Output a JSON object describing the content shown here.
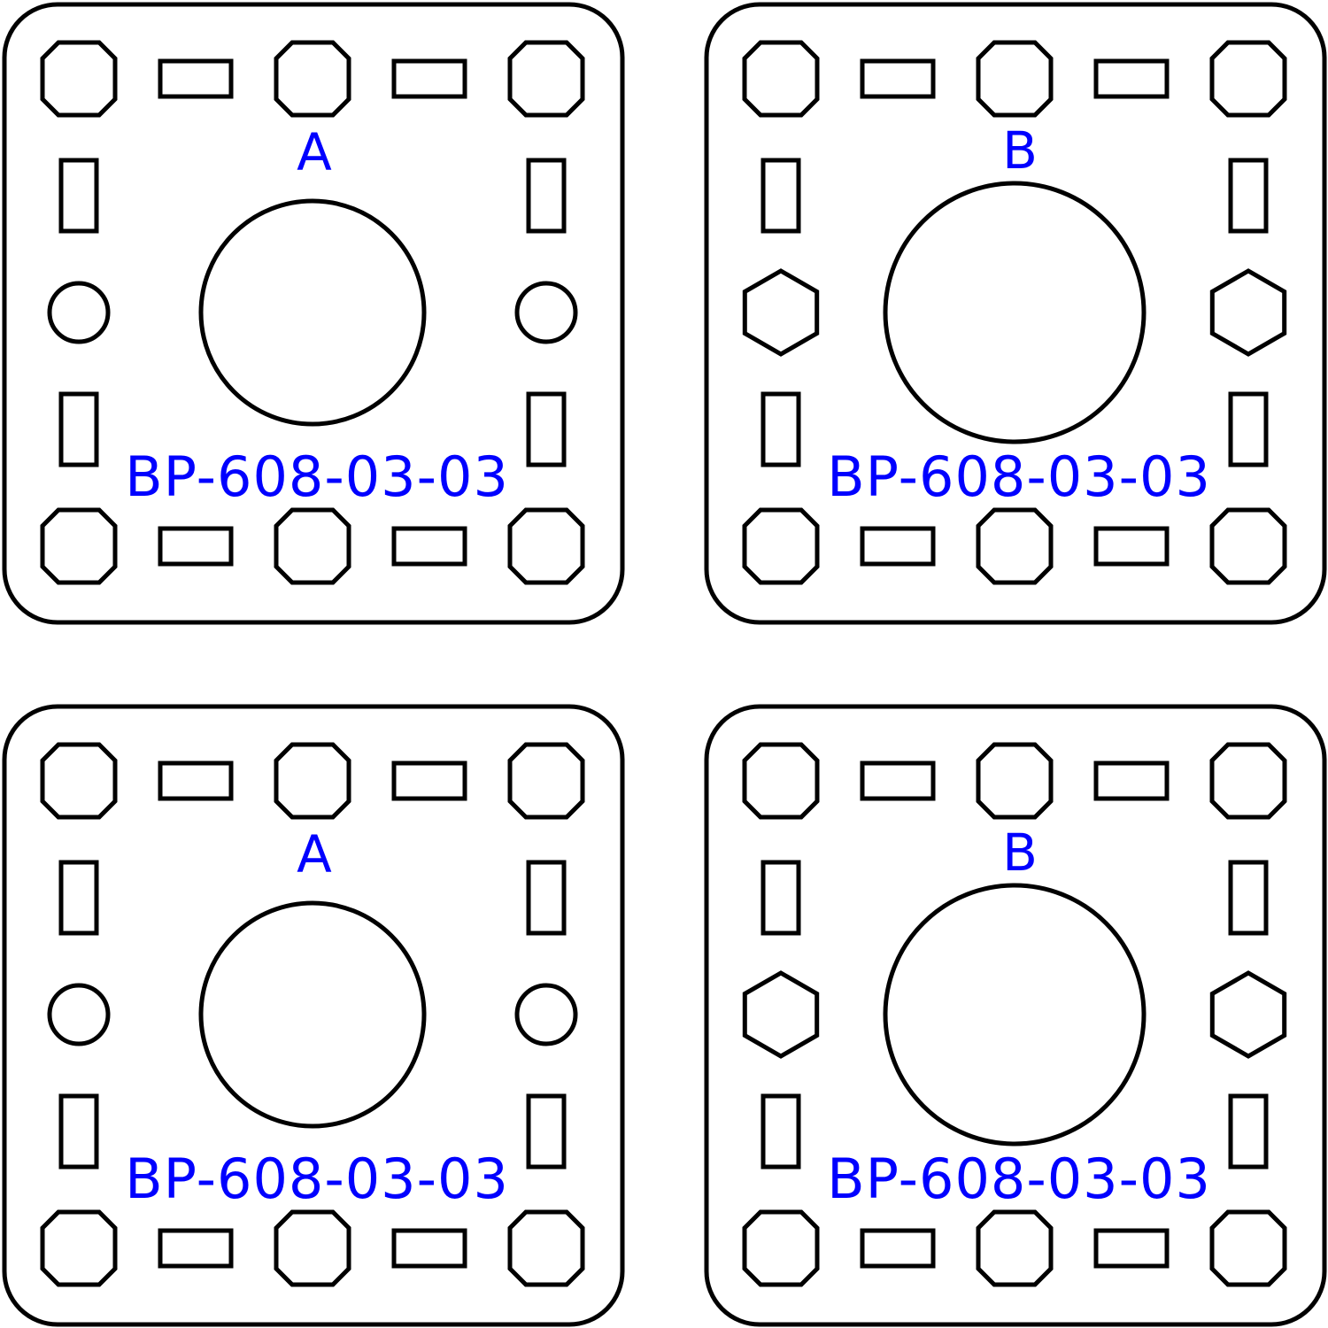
{
  "drawing": {
    "line_color": "#000000",
    "label_color": "#0000ff",
    "background": "#ffffff"
  },
  "plates": [
    {
      "variant": "A",
      "letter": "A",
      "part_number": "BP-608-03-03",
      "side_hole": "circle-icon",
      "corner_hole": "octagon-icon",
      "slot": "rectangle-slot"
    },
    {
      "variant": "B",
      "letter": "B",
      "part_number": "BP-608-03-03",
      "side_hole": "hexagon-icon",
      "corner_hole": "octagon-icon",
      "slot": "rectangle-slot"
    },
    {
      "variant": "A",
      "letter": "A",
      "part_number": "BP-608-03-03",
      "side_hole": "circle-icon",
      "corner_hole": "octagon-icon",
      "slot": "rectangle-slot"
    },
    {
      "variant": "B",
      "letter": "B",
      "part_number": "BP-608-03-03",
      "side_hole": "hexagon-icon",
      "corner_hole": "octagon-icon",
      "slot": "rectangle-slot"
    }
  ]
}
